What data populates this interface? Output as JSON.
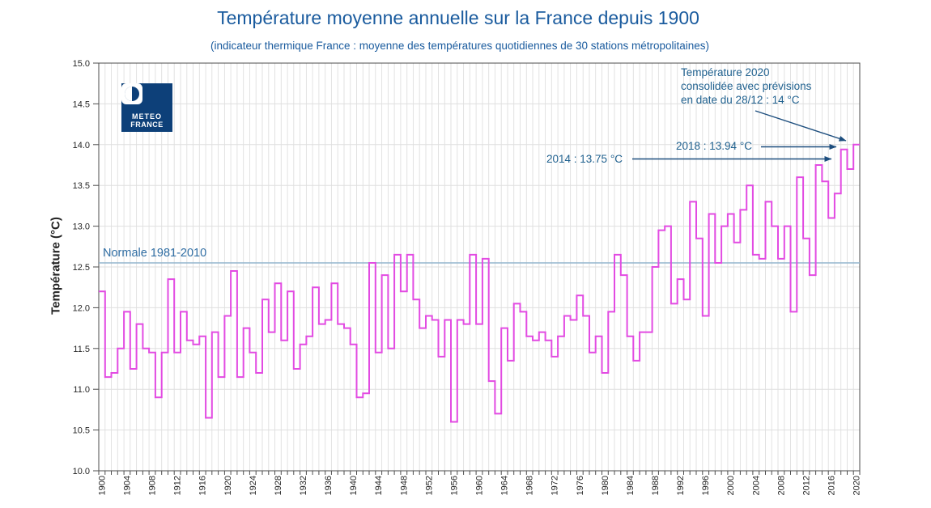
{
  "title": "Température moyenne annuelle sur la France depuis 1900",
  "subtitle": "(indicateur thermique France : moyenne des températures quotidiennes de 30 stations métropolitaines)",
  "logo": {
    "line1": "METEO",
    "line2": "FRANCE"
  },
  "axes": {
    "y_label": "Température (°C)"
  },
  "normale": {
    "label": "Normale 1981-2010",
    "value": 12.55
  },
  "annotations": {
    "a2020": {
      "line1": "Température 2020",
      "line2": "consolidée avec prévisions",
      "line3": "en date du 28/12 : 14 °C"
    },
    "a2018": {
      "text": "2018 : 13.94 °C"
    },
    "a2014": {
      "text": "2014 : 13.75 °C"
    }
  },
  "colors": {
    "series": "#E24BE2",
    "normale_line": "#93B5CD",
    "normale_label": "#2F6DA3",
    "title": "#1A5B9E",
    "annotation": "#20618F",
    "arrow": "#1D4E7E",
    "logo_bg": "#0D4079",
    "grid": "#DFDFDF",
    "axis": "#4D4D4D",
    "tick_text": "#262626"
  },
  "chart_data": {
    "type": "line",
    "subtype": "step",
    "title": "Température moyenne annuelle sur la France depuis 1900",
    "ylabel": "Température (°C)",
    "ylim": [
      10.0,
      15.0
    ],
    "y_tick_labels": [
      "10.0",
      "10.5",
      "11.0",
      "11.5",
      "12.0",
      "12.5",
      "13.0",
      "13.5",
      "14.0",
      "14.5",
      "15.0"
    ],
    "x_start": 1900,
    "x_end": 2020,
    "x_tick_labels": [
      "1900",
      "1904",
      "1908",
      "1912",
      "1916",
      "1920",
      "1924",
      "1928",
      "1932",
      "1936",
      "1940",
      "1944",
      "1948",
      "1952",
      "1956",
      "1960",
      "1964",
      "1968",
      "1972",
      "1976",
      "1980",
      "1984",
      "1988",
      "1992",
      "1996",
      "2000",
      "2004",
      "2008",
      "2012",
      "2016",
      "2020"
    ],
    "grid": true,
    "reference_line": {
      "label": "Normale 1981-2010",
      "value": 12.55
    },
    "series": [
      {
        "name": "Température moyenne annuelle (°C)",
        "values": [
          12.2,
          11.15,
          11.2,
          11.5,
          11.95,
          11.25,
          11.8,
          11.5,
          11.45,
          10.9,
          11.45,
          12.35,
          11.45,
          11.95,
          11.6,
          11.55,
          11.65,
          10.65,
          11.7,
          11.15,
          11.9,
          12.45,
          11.15,
          11.75,
          11.45,
          11.2,
          12.1,
          11.7,
          12.3,
          11.6,
          12.2,
          11.25,
          11.55,
          11.65,
          12.25,
          11.8,
          11.85,
          12.3,
          11.8,
          11.75,
          11.55,
          10.9,
          10.95,
          12.55,
          11.45,
          12.4,
          11.5,
          12.65,
          12.2,
          12.65,
          12.1,
          11.75,
          11.9,
          11.85,
          11.4,
          11.85,
          10.6,
          11.85,
          11.8,
          12.65,
          11.8,
          12.6,
          11.1,
          10.7,
          11.75,
          11.35,
          12.05,
          11.95,
          11.65,
          11.6,
          11.7,
          11.6,
          11.4,
          11.65,
          11.9,
          11.85,
          12.15,
          11.9,
          11.45,
          11.65,
          11.2,
          11.95,
          12.65,
          12.4,
          11.65,
          11.35,
          11.7,
          11.7,
          12.5,
          12.95,
          13.0,
          12.05,
          12.35,
          12.1,
          13.3,
          12.85,
          11.9,
          13.15,
          12.55,
          13.0,
          13.15,
          12.8,
          13.2,
          13.5,
          12.65,
          12.6,
          13.3,
          13.0,
          12.6,
          13.0,
          11.95,
          13.6,
          12.85,
          12.4,
          13.75,
          13.55,
          13.1,
          13.4,
          13.94,
          13.7,
          14.0
        ]
      }
    ],
    "annotations": [
      "2014 : 13.75 °C",
      "2018 : 13.94 °C",
      "Température 2020 consolidée avec prévisions en date du 28/12 : 14 °C"
    ]
  }
}
